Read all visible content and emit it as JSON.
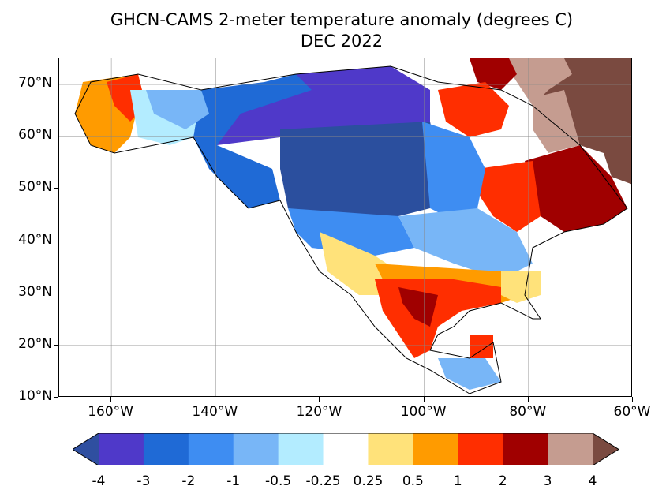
{
  "title": {
    "line1": "GHCN-CAMS 2-meter temperature anomaly (degrees C)",
    "line2": "DEC 2022"
  },
  "map": {
    "lon_range": [
      -170,
      -60
    ],
    "lat_range": [
      10,
      75
    ],
    "gridlines": true,
    "lat_labels": [
      "70°N",
      "60°N",
      "50°N",
      "40°N",
      "30°N",
      "20°N",
      "10°N"
    ],
    "lon_labels": [
      "160°W",
      "140°W",
      "120°W",
      "100°W",
      "80°W",
      "60°W"
    ],
    "lat_values": [
      70,
      60,
      50,
      40,
      30,
      20,
      10
    ],
    "lon_values": [
      -160,
      -140,
      -120,
      -100,
      -80,
      -60
    ],
    "regions": [
      {
        "name": "interior-west-canada-and-plains",
        "anomaly_bin": -4,
        "color": "#2b4f9e"
      },
      {
        "name": "yukon-nwt",
        "anomaly_bin": -3,
        "color": "#4f39c9"
      },
      {
        "name": "western-canada-rockies",
        "anomaly_bin": -2,
        "color": "#1f6ad6"
      },
      {
        "name": "great-lakes-northeast",
        "anomaly_bin": -1,
        "color": "#78b6f7"
      },
      {
        "name": "alaska-west",
        "anomaly_bin": 1,
        "color": "#ff9b00"
      },
      {
        "name": "texas-mexico",
        "anomaly_bin": 2,
        "color": "#ff2e00"
      },
      {
        "name": "quebec-labrador",
        "anomaly_bin": 3,
        "color": "#a00000"
      },
      {
        "name": "baffin-labrador-north",
        "anomaly_bin": 4,
        "color": "#c59c90"
      },
      {
        "name": "greenland-west",
        "anomaly_bin": 5,
        "color": "#7a4a40"
      }
    ]
  },
  "colorbar": {
    "labels": [
      "-4",
      "-3",
      "-2",
      "-1",
      "-0.5",
      "-0.25",
      "0.25",
      "0.5",
      "1",
      "2",
      "3",
      "4"
    ],
    "low_extend_color": "#2f4fa0",
    "high_extend_color": "#7a4a40",
    "colors": [
      "#4f39c9",
      "#1f6ad6",
      "#3e8df2",
      "#78b6f7",
      "#b3ecff",
      "#ffffff",
      "#ffe27a",
      "#ff9b00",
      "#ff2e00",
      "#a00000",
      "#c59c90"
    ]
  }
}
